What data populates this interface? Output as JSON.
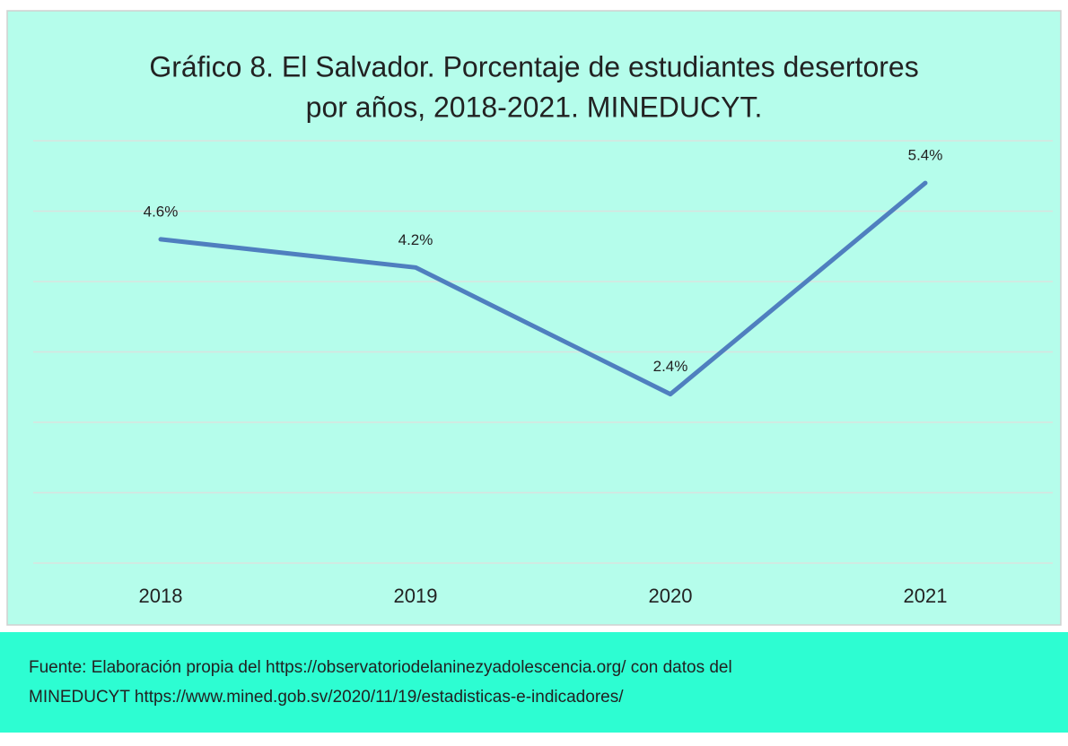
{
  "chart_data": {
    "type": "line",
    "title": [
      "Gráfico 8. El Salvador. Porcentaje de estudiantes desertores",
      "por años, 2018-2021. MINEDUCYT."
    ],
    "categories": [
      "2018",
      "2019",
      "2020",
      "2021"
    ],
    "series": [
      {
        "name": null,
        "color": "#4f7fbf",
        "values": [
          4.6,
          4.2,
          2.4,
          5.4
        ],
        "value_labels": [
          "4.6%",
          "4.2%",
          "2.4%",
          "5.4%"
        ]
      }
    ],
    "ylim": [
      0,
      6
    ],
    "yticks": [
      0,
      1,
      2,
      3,
      4,
      5,
      6
    ],
    "grid": true,
    "background": "#b5fdeb"
  },
  "footer": {
    "lines": [
      "Fuente: Elaboración propia del https://observatoriodelaninezyadolescencia.org/ con datos del",
      "MINEDUCYT https://www.mined.gob.sv/2020/11/19/estadisticas-e-indicadores/"
    ],
    "background": "#2dfdd2"
  }
}
